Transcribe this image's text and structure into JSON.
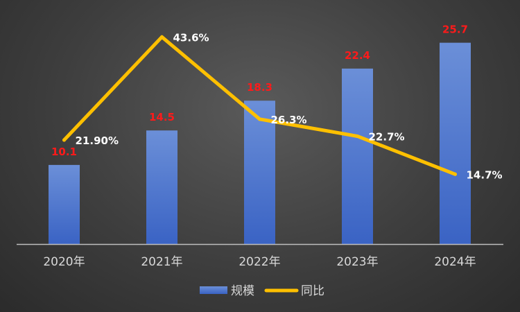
{
  "chart_data": {
    "type": "bar",
    "categories": [
      "2020年",
      "2021年",
      "2022年",
      "2023年",
      "2024年"
    ],
    "series": [
      {
        "name": "规模",
        "kind": "bar",
        "values": [
          10.1,
          14.5,
          18.3,
          22.4,
          25.7
        ],
        "labels": [
          "10.1",
          "14.5",
          "18.3",
          "22.4",
          "25.7"
        ],
        "color": "#4472c4",
        "label_color": "#ff1a1a"
      },
      {
        "name": "同比",
        "kind": "line",
        "values": [
          21.9,
          43.6,
          26.3,
          22.7,
          14.7
        ],
        "labels": [
          "21.90%",
          "43.6%",
          "26.3%",
          "22.7%",
          "14.7%"
        ],
        "color": "#ffc000",
        "label_color": "#ffffff"
      }
    ],
    "y_bar_range": [
      0,
      28.5
    ],
    "y_line_range": [
      0,
      47
    ],
    "grid": false,
    "legend_position": "bottom"
  }
}
